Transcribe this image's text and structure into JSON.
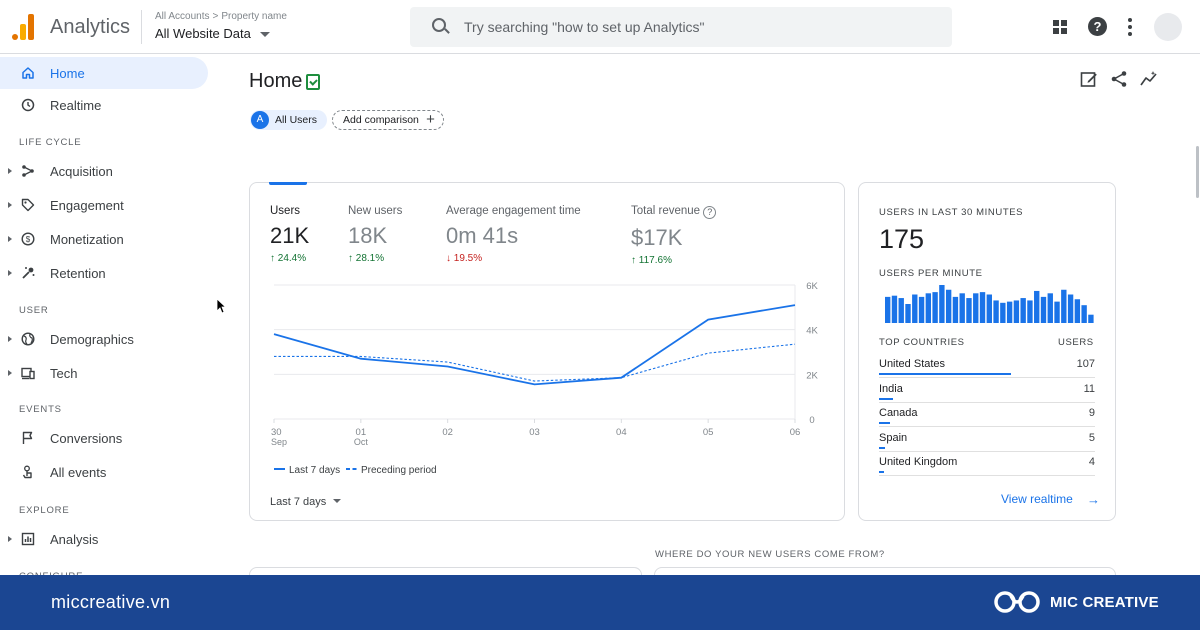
{
  "header": {
    "app_name": "Analytics",
    "crumb_accounts": "All Accounts",
    "crumb_property": "Property name",
    "account_name": "All Website Data",
    "search_placeholder": "Try searching \"how to set up Analytics\""
  },
  "sidebar": {
    "items": [
      {
        "label": "Home",
        "icon": "home-icon",
        "active": true
      },
      {
        "label": "Realtime",
        "icon": "clock-icon"
      }
    ],
    "sections": [
      {
        "label": "LIFE CYCLE",
        "items": [
          {
            "label": "Acquisition",
            "icon": "acquisition-icon"
          },
          {
            "label": "Engagement",
            "icon": "tag-icon"
          },
          {
            "label": "Monetization",
            "icon": "dollar-icon"
          },
          {
            "label": "Retention",
            "icon": "retention-icon"
          }
        ]
      },
      {
        "label": "USER",
        "items": [
          {
            "label": "Demographics",
            "icon": "globe-icon"
          },
          {
            "label": "Tech",
            "icon": "devices-icon"
          }
        ]
      },
      {
        "label": "EVENTS",
        "items": [
          {
            "label": "Conversions",
            "icon": "flag-icon"
          },
          {
            "label": "All events",
            "icon": "touch-icon"
          }
        ]
      },
      {
        "label": "EXPLORE",
        "items": [
          {
            "label": "Analysis",
            "icon": "analysis-icon"
          }
        ]
      },
      {
        "label": "CONFIGURE"
      }
    ]
  },
  "main": {
    "title": "Home",
    "chip_users": "All Users",
    "chip_users_letter": "A",
    "chip_add": "Add comparison",
    "metrics": [
      {
        "label": "Users",
        "value": "21K",
        "delta": "24.4%",
        "direction": "up"
      },
      {
        "label": "New users",
        "value": "18K",
        "delta": "28.1%",
        "direction": "up"
      },
      {
        "label": "Average engagement time",
        "value": "0m 41s",
        "delta": "19.5%",
        "direction": "down"
      },
      {
        "label": "Total revenue",
        "value": "$17K",
        "delta": "117.6%",
        "direction": "up"
      }
    ],
    "date_range": "Last 7 days",
    "where_label": "WHERE DO YOUR NEW USERS COME FROM?"
  },
  "chart_data": [
    {
      "type": "line",
      "x": [
        "30 Sep",
        "01 Oct",
        "02",
        "03",
        "04",
        "05",
        "06"
      ],
      "x_labels": [
        [
          "30",
          "Sep"
        ],
        [
          "01",
          "Oct"
        ],
        [
          "02",
          ""
        ],
        [
          "03",
          ""
        ],
        [
          "04",
          ""
        ],
        [
          "05",
          ""
        ],
        [
          "06",
          ""
        ]
      ],
      "y_ticks": [
        "0",
        "2K",
        "4K",
        "6K"
      ],
      "ylim": [
        0,
        6000
      ],
      "series": [
        {
          "name": "Last 7 days",
          "style": "solid",
          "color": "#1a73e8",
          "values": [
            3800,
            2700,
            2350,
            1550,
            1850,
            4450,
            5100
          ]
        },
        {
          "name": "Preceding period",
          "style": "dashed",
          "color": "#1a73e8",
          "values": [
            2800,
            2800,
            2550,
            1700,
            1850,
            2950,
            3350
          ]
        }
      ],
      "grid": true,
      "legend": "bottom-left"
    },
    {
      "type": "bar",
      "title": "USERS PER MINUTE",
      "values": [
        22,
        23,
        21,
        16,
        24,
        22,
        25,
        26,
        32,
        28,
        22,
        25,
        21,
        25,
        26,
        24,
        19,
        17,
        18,
        19,
        21,
        19,
        27,
        22,
        25,
        18,
        28,
        24,
        20,
        15,
        7
      ],
      "color": "#1a73e8"
    }
  ],
  "realtime": {
    "label": "USERS IN LAST 30 MINUTES",
    "value": "175",
    "per_minute_label": "USERS PER MINUTE",
    "col_countries": "TOP COUNTRIES",
    "col_users": "USERS",
    "countries": [
      {
        "name": "United States",
        "users": "107",
        "share": 1.0
      },
      {
        "name": "India",
        "users": "11",
        "share": 0.103
      },
      {
        "name": "Canada",
        "users": "9",
        "share": 0.084
      },
      {
        "name": "Spain",
        "users": "5",
        "share": 0.047
      },
      {
        "name": "United Kingdom",
        "users": "4",
        "share": 0.037
      }
    ],
    "view_link": "View realtime"
  },
  "banner": {
    "site": "miccreative.vn",
    "brand": "MIC CREATIVE"
  },
  "colors": {
    "accent": "#1a73e8",
    "banner": "#1b4692",
    "up": "#137333",
    "down": "#c5221f"
  }
}
